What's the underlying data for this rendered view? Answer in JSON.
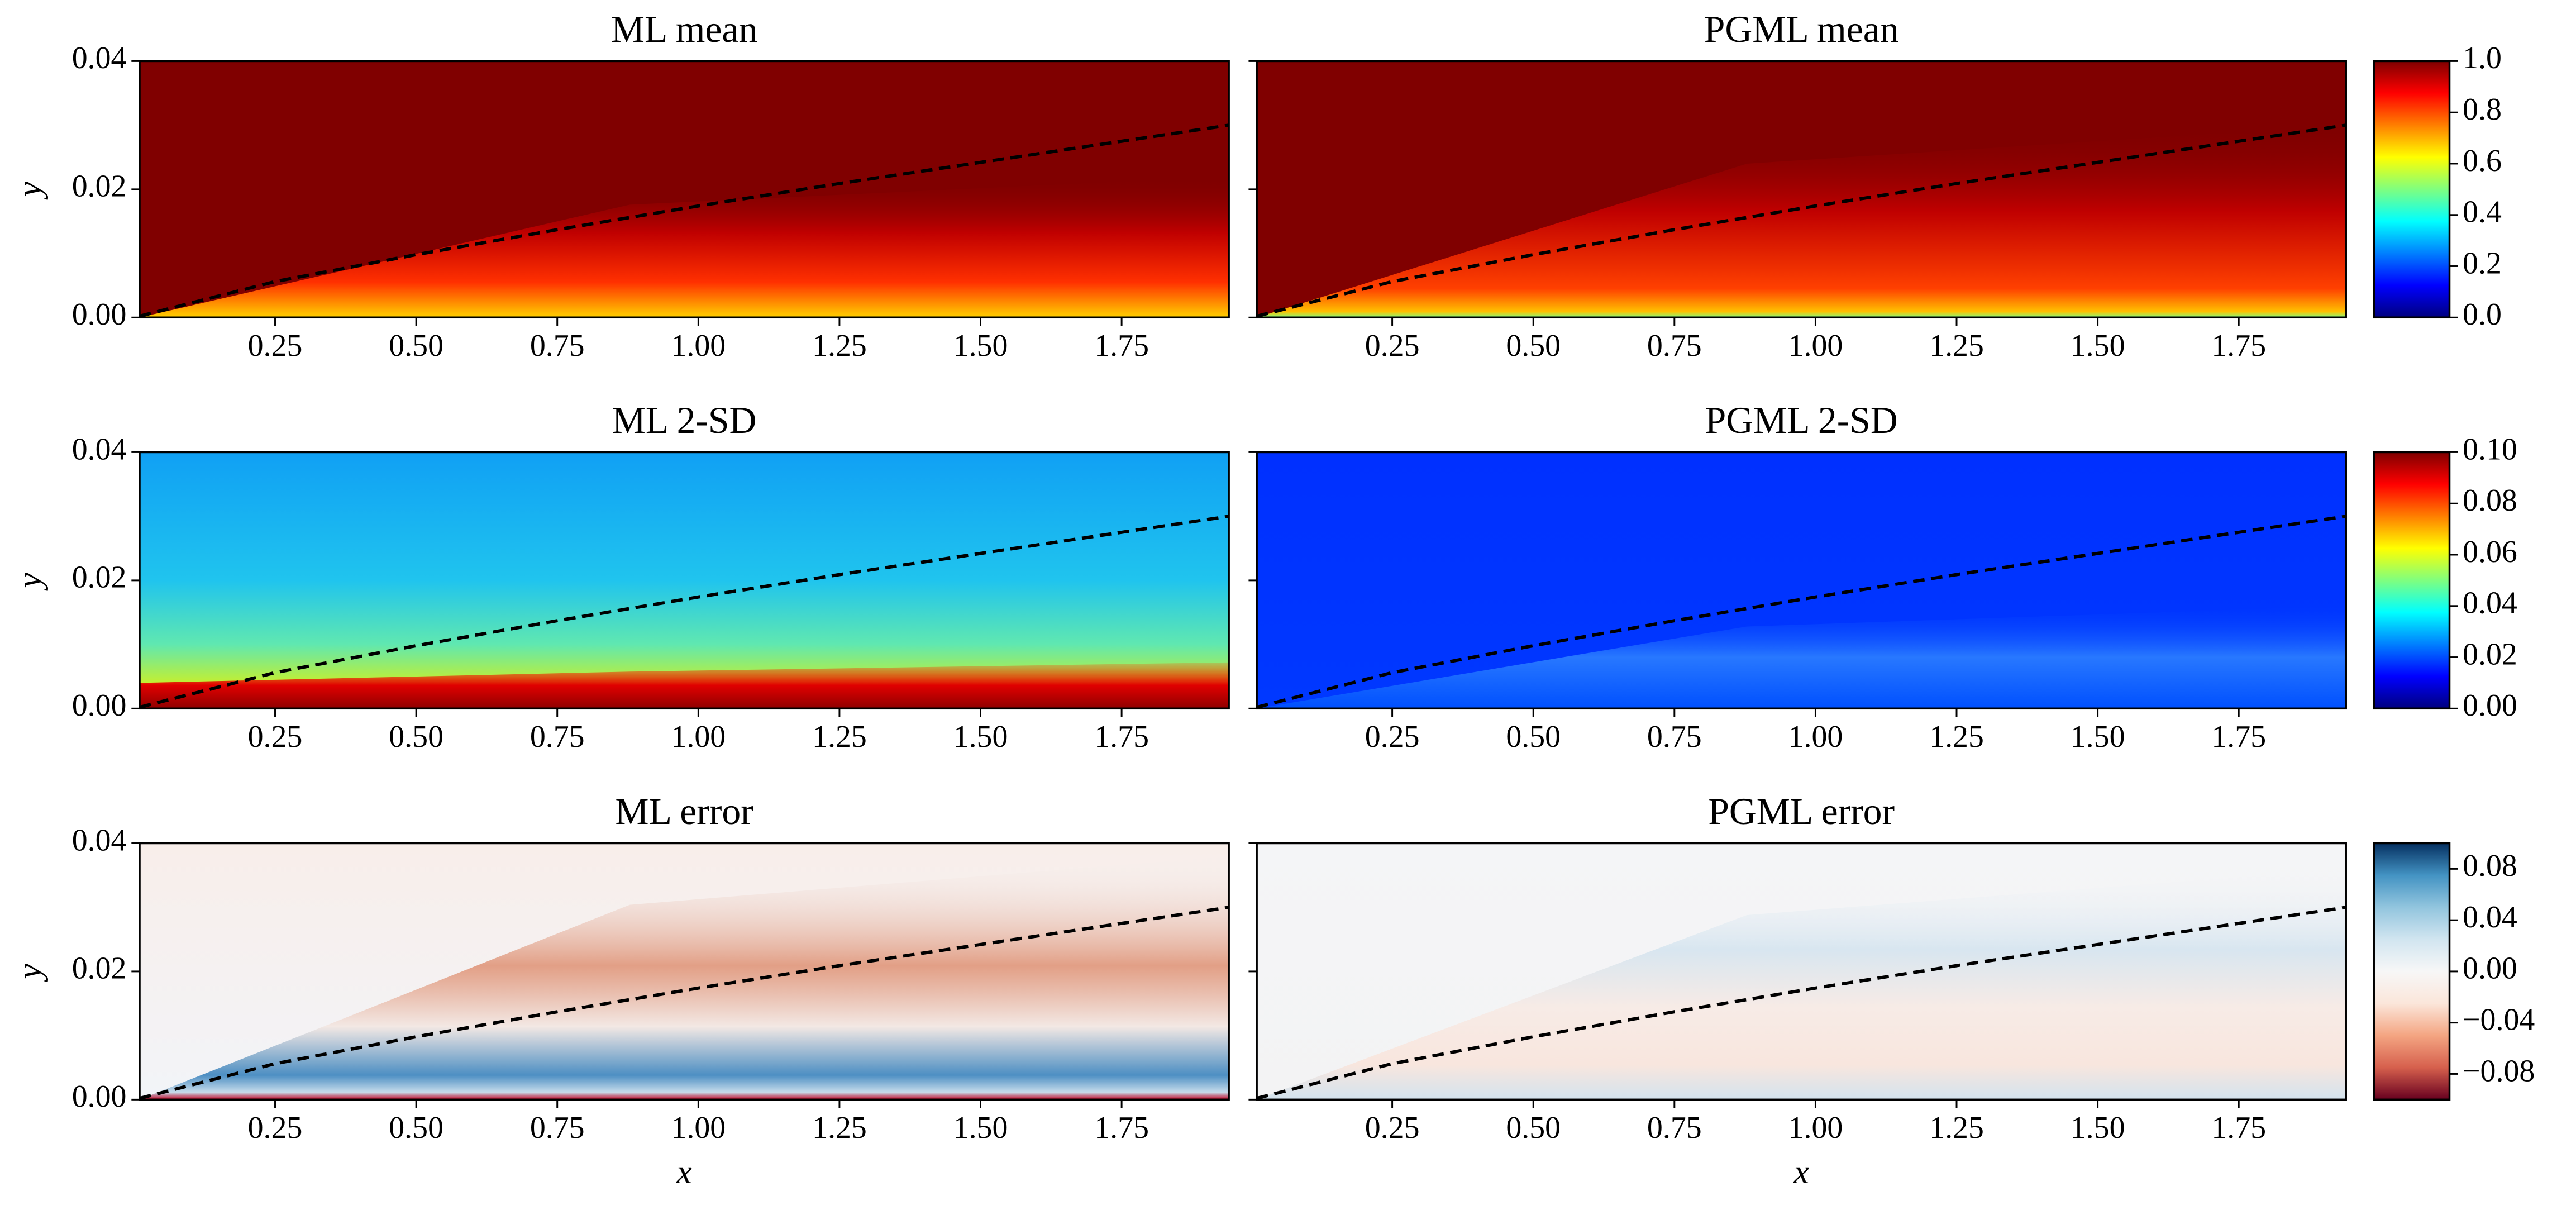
{
  "chart_data": [
    {
      "type": "heatmap",
      "title": "ML mean",
      "ylabel": "y",
      "xlim": [
        0.01,
        1.94
      ],
      "ylim": [
        0,
        0.04
      ],
      "xticks": [
        0.25,
        {
          "value": 0.5,
          "label": "0.50"
        },
        0.75,
        {
          "value": 1,
          "label": "1.00"
        },
        1.25,
        {
          "value": 1.5,
          "label": "1.50"
        },
        1.75
      ],
      "yticks": [
        {
          "value": 0,
          "label": "0.00"
        },
        0.02,
        0.04
      ],
      "ytick_labels": true,
      "curve": {
        "x": [
          0.01,
          0.25,
          0.5,
          0.75,
          1,
          1.25,
          1.5,
          1.75,
          1.94
        ],
        "y": [
          0.0002,
          0.0056,
          0.0098,
          0.0137,
          0.0174,
          0.0209,
          0.0242,
          0.0275,
          0.03
        ]
      }
    },
    {
      "type": "heatmap",
      "title": "PGML mean",
      "xlim": [
        0.01,
        1.94
      ],
      "ylim": [
        0,
        0.04
      ],
      "xticks": [
        0.25,
        {
          "value": 0.5,
          "label": "0.50"
        },
        0.75,
        {
          "value": 1,
          "label": "1.00"
        },
        1.25,
        {
          "value": 1.5,
          "label": "1.50"
        },
        1.75
      ],
      "yticks": [
        0,
        0.02,
        0.04
      ],
      "ytick_labels": false,
      "curve": {
        "x": [
          0.01,
          0.25,
          0.5,
          0.75,
          1,
          1.25,
          1.5,
          1.75,
          1.94
        ],
        "y": [
          0.0002,
          0.0056,
          0.0098,
          0.0137,
          0.0174,
          0.0209,
          0.0242,
          0.0275,
          0.03
        ]
      },
      "colorbar": {
        "colormap": "jet",
        "clim": [
          0,
          1
        ],
        "ticks": [
          {
            "value": 0,
            "label": "0.0"
          },
          0.2,
          0.4,
          0.6,
          0.8,
          {
            "value": 1,
            "label": "1.0"
          }
        ]
      }
    },
    {
      "type": "heatmap",
      "title": "ML 2-SD",
      "ylabel": "y",
      "xlim": [
        0.01,
        1.94
      ],
      "ylim": [
        0,
        0.04
      ],
      "xticks": [
        0.25,
        {
          "value": 0.5,
          "label": "0.50"
        },
        0.75,
        {
          "value": 1,
          "label": "1.00"
        },
        1.25,
        {
          "value": 1.5,
          "label": "1.50"
        },
        1.75
      ],
      "yticks": [
        {
          "value": 0,
          "label": "0.00"
        },
        0.02,
        0.04
      ],
      "ytick_labels": true,
      "curve": {
        "x": [
          0.01,
          0.25,
          0.5,
          0.75,
          1,
          1.25,
          1.5,
          1.75,
          1.94
        ],
        "y": [
          0.0002,
          0.0056,
          0.0098,
          0.0137,
          0.0174,
          0.0209,
          0.0242,
          0.0275,
          0.03
        ]
      }
    },
    {
      "type": "heatmap",
      "title": "PGML 2-SD",
      "xlim": [
        0.01,
        1.94
      ],
      "ylim": [
        0,
        0.04
      ],
      "xticks": [
        0.25,
        {
          "value": 0.5,
          "label": "0.50"
        },
        0.75,
        {
          "value": 1,
          "label": "1.00"
        },
        1.25,
        {
          "value": 1.5,
          "label": "1.50"
        },
        1.75
      ],
      "yticks": [
        0,
        0.02,
        0.04
      ],
      "ytick_labels": false,
      "curve": {
        "x": [
          0.01,
          0.25,
          0.5,
          0.75,
          1,
          1.25,
          1.5,
          1.75,
          1.94
        ],
        "y": [
          0.0002,
          0.0056,
          0.0098,
          0.0137,
          0.0174,
          0.0209,
          0.0242,
          0.0275,
          0.03
        ]
      },
      "colorbar": {
        "colormap": "jet",
        "clim": [
          0,
          0.1
        ],
        "ticks": [
          {
            "value": 0,
            "label": "0.00"
          },
          0.02,
          0.04,
          0.06,
          0.08,
          {
            "value": 0.1,
            "label": "0.10"
          }
        ]
      }
    },
    {
      "type": "heatmap",
      "title": "ML error",
      "ylabel": "y",
      "xlabel": "x",
      "xlim": [
        0.01,
        1.94
      ],
      "ylim": [
        0,
        0.04
      ],
      "xticks": [
        0.25,
        {
          "value": 0.5,
          "label": "0.50"
        },
        0.75,
        {
          "value": 1,
          "label": "1.00"
        },
        1.25,
        {
          "value": 1.5,
          "label": "1.50"
        },
        1.75
      ],
      "yticks": [
        {
          "value": 0,
          "label": "0.00"
        },
        0.02,
        0.04
      ],
      "ytick_labels": true,
      "curve": {
        "x": [
          0.01,
          0.25,
          0.5,
          0.75,
          1,
          1.25,
          1.5,
          1.75,
          1.94
        ],
        "y": [
          0.0002,
          0.0056,
          0.0098,
          0.0137,
          0.0174,
          0.0209,
          0.0242,
          0.0275,
          0.03
        ]
      }
    },
    {
      "type": "heatmap",
      "title": "PGML error",
      "xlabel": "x",
      "xlim": [
        0.01,
        1.94
      ],
      "ylim": [
        0,
        0.04
      ],
      "xticks": [
        0.25,
        {
          "value": 0.5,
          "label": "0.50"
        },
        0.75,
        {
          "value": 1,
          "label": "1.00"
        },
        1.25,
        {
          "value": 1.5,
          "label": "1.50"
        },
        1.75
      ],
      "yticks": [
        0,
        0.02,
        0.04
      ],
      "ytick_labels": false,
      "curve": {
        "x": [
          0.01,
          0.25,
          0.5,
          0.75,
          1,
          1.25,
          1.5,
          1.75,
          1.94
        ],
        "y": [
          0.0002,
          0.0056,
          0.0098,
          0.0137,
          0.0174,
          0.0209,
          0.0242,
          0.0275,
          0.03
        ]
      },
      "colorbar": {
        "colormap": "RdBu",
        "clim": [
          -0.1,
          0.1
        ],
        "ticks": [
          {
            "value": -0.08,
            "label": "−0.08"
          },
          {
            "value": -0.04,
            "label": "−0.04"
          },
          {
            "value": 0,
            "label": "0.00"
          },
          0.04,
          0.08
        ]
      }
    }
  ]
}
